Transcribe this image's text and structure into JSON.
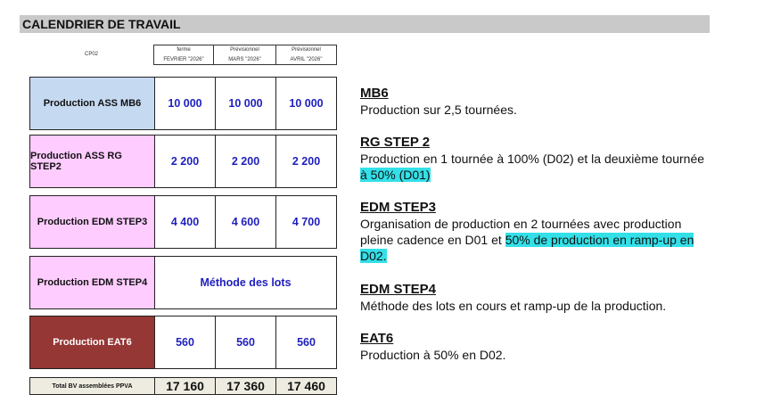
{
  "title": "CALENDRIER DE TRAVAIL",
  "table": {
    "corner": "CP02",
    "columns": [
      {
        "status": "ferme",
        "month": "FEVRIER \"2026\""
      },
      {
        "status": "Prévisionnel",
        "month": "MARS \"2026\""
      },
      {
        "status": "Prévisionnel",
        "month": "AVRIL \"2026\""
      }
    ],
    "rows": [
      {
        "label": "Production  ASS MB6",
        "color": "#c5d9f1",
        "values": [
          "10 000",
          "10 000",
          "10 000"
        ]
      },
      {
        "label": "Production ASS RG STEP2",
        "color": "#ffccff",
        "values": [
          "2 200",
          "2 200",
          "2 200"
        ]
      },
      {
        "label": "Production EDM STEP3",
        "color": "#ffccff",
        "values": [
          "4 400",
          "4 600",
          "4 700"
        ]
      },
      {
        "label": "Production EDM STEP4",
        "color": "#ffccff",
        "merged": "Méthode des lots"
      },
      {
        "label": "Production EAT6",
        "color": "#953735",
        "values": [
          "560",
          "560",
          "560"
        ]
      }
    ],
    "total": {
      "label": "Total BV assemblées PPVA",
      "values": [
        "17 160",
        "17 360",
        "17 460"
      ]
    }
  },
  "notes": [
    {
      "title": "MB6",
      "text": "Production sur 2,5 tournées."
    },
    {
      "title": "RG STEP 2",
      "text": "Production en 1 tournée à 100% (D02) et la deuxième tournée ",
      "highlight": "à 50% (D01)"
    },
    {
      "title": "EDM STEP3",
      "text": "Organisation de production en 2 tournées avec production pleine cadence en D01 et ",
      "highlight": "50% de production en ramp-up en D02."
    },
    {
      "title": "EDM STEP4",
      "text": "Méthode des lots en cours et ramp-up de la production."
    },
    {
      "title": "EAT6",
      "text": "Production à 50% en D02."
    }
  ],
  "highlight_color": "#33e0e8"
}
